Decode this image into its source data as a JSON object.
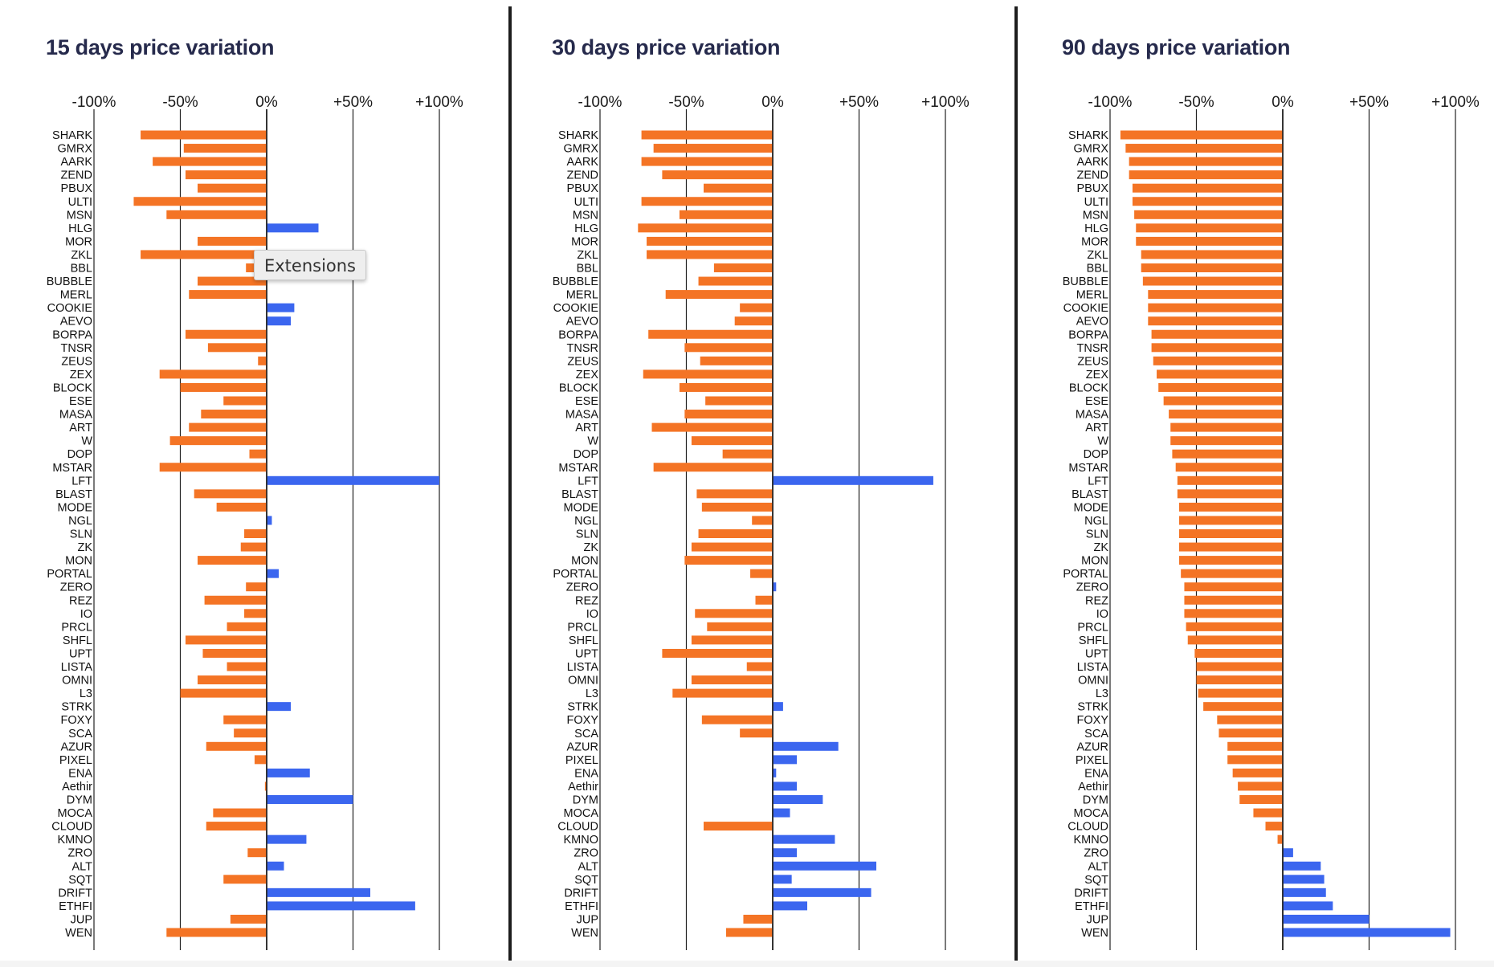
{
  "colors": {
    "negative": "#f47425",
    "positive": "#3b66ef",
    "title": "#262a4c"
  },
  "tooltip": {
    "text": "Extensions"
  },
  "chart_data": [
    {
      "type": "bar",
      "orientation": "horizontal",
      "title": "15 days price variation",
      "xlim": [
        -100,
        100
      ],
      "xticks": [
        -100,
        -50,
        0,
        50,
        100
      ],
      "xtick_labels": [
        "-100%",
        "-50%",
        "0%",
        "+50%",
        "+100%"
      ],
      "categories": [
        "SHARK",
        "GMRX",
        "AARK",
        "ZEND",
        "PBUX",
        "ULTI",
        "MSN",
        "HLG",
        "MOR",
        "ZKL",
        "BBL",
        "BUBBLE",
        "MERL",
        "COOKIE",
        "AEVO",
        "BORPA",
        "TNSR",
        "ZEUS",
        "ZEX",
        "BLOCK",
        "ESE",
        "MASA",
        "ART",
        "W",
        "DOP",
        "MSTAR",
        "LFT",
        "BLAST",
        "MODE",
        "NGL",
        "SLN",
        "ZK",
        "MON",
        "PORTAL",
        "ZERO",
        "REZ",
        "IO",
        "PRCL",
        "SHFL",
        "UPT",
        "LISTA",
        "OMNI",
        "L3",
        "STRK",
        "FOXY",
        "SCA",
        "AZUR",
        "PIXEL",
        "ENA",
        "Aethir",
        "DYM",
        "MOCA",
        "CLOUD",
        "KMNO",
        "ZRO",
        "ALT",
        "SQT",
        "DRIFT",
        "ETHFI",
        "JUP",
        "WEN"
      ],
      "values": [
        -73,
        -48,
        -66,
        -47,
        -40,
        -77,
        -58,
        30,
        -40,
        -73,
        -12,
        -40,
        -45,
        16,
        14,
        -47,
        -34,
        -5,
        -62,
        -50,
        -25,
        -38,
        -45,
        -56,
        -10,
        -62,
        100,
        -42,
        -29,
        3,
        -13,
        -15,
        -40,
        7,
        -12,
        -36,
        -13,
        -23,
        -47,
        -37,
        -23,
        -40,
        -50,
        14,
        -25,
        -19,
        -35,
        -7,
        25,
        -1,
        50,
        -31,
        -35,
        23,
        -11,
        10,
        -25,
        60,
        86,
        -21,
        -58
      ]
    },
    {
      "type": "bar",
      "orientation": "horizontal",
      "title": "30 days price variation",
      "xlim": [
        -100,
        100
      ],
      "xticks": [
        -100,
        -50,
        0,
        50,
        100
      ],
      "xtick_labels": [
        "-100%",
        "-50%",
        "0%",
        "+50%",
        "+100%"
      ],
      "categories": [
        "SHARK",
        "GMRX",
        "AARK",
        "ZEND",
        "PBUX",
        "ULTI",
        "MSN",
        "HLG",
        "MOR",
        "ZKL",
        "BBL",
        "BUBBLE",
        "MERL",
        "COOKIE",
        "AEVO",
        "BORPA",
        "TNSR",
        "ZEUS",
        "ZEX",
        "BLOCK",
        "ESE",
        "MASA",
        "ART",
        "W",
        "DOP",
        "MSTAR",
        "LFT",
        "BLAST",
        "MODE",
        "NGL",
        "SLN",
        "ZK",
        "MON",
        "PORTAL",
        "ZERO",
        "REZ",
        "IO",
        "PRCL",
        "SHFL",
        "UPT",
        "LISTA",
        "OMNI",
        "L3",
        "STRK",
        "FOXY",
        "SCA",
        "AZUR",
        "PIXEL",
        "ENA",
        "Aethir",
        "DYM",
        "MOCA",
        "CLOUD",
        "KMNO",
        "ZRO",
        "ALT",
        "SQT",
        "DRIFT",
        "ETHFI",
        "JUP",
        "WEN"
      ],
      "values": [
        -76,
        -69,
        -76,
        -64,
        -40,
        -76,
        -54,
        -78,
        -73,
        -73,
        -34,
        -43,
        -62,
        -19,
        -22,
        -72,
        -51,
        -42,
        -75,
        -54,
        -39,
        -51,
        -70,
        -47,
        -29,
        -69,
        93,
        -44,
        -41,
        -12,
        -43,
        -47,
        -51,
        -13,
        2,
        -10,
        -45,
        -38,
        -47,
        -64,
        -15,
        -47,
        -58,
        6,
        -41,
        -19,
        38,
        14,
        2,
        14,
        29,
        10,
        -40,
        36,
        14,
        60,
        11,
        57,
        20,
        -17,
        -27
      ]
    },
    {
      "type": "bar",
      "orientation": "horizontal",
      "title": "90 days price variation",
      "xlim": [
        -100,
        100
      ],
      "xticks": [
        -100,
        -50,
        0,
        50,
        100
      ],
      "xtick_labels": [
        "-100%",
        "-50%",
        "0%",
        "+50%",
        "+100%"
      ],
      "categories": [
        "SHARK",
        "GMRX",
        "AARK",
        "ZEND",
        "PBUX",
        "ULTI",
        "MSN",
        "HLG",
        "MOR",
        "ZKL",
        "BBL",
        "BUBBLE",
        "MERL",
        "COOKIE",
        "AEVO",
        "BORPA",
        "TNSR",
        "ZEUS",
        "ZEX",
        "BLOCK",
        "ESE",
        "MASA",
        "ART",
        "W",
        "DOP",
        "MSTAR",
        "LFT",
        "BLAST",
        "MODE",
        "NGL",
        "SLN",
        "ZK",
        "MON",
        "PORTAL",
        "ZERO",
        "REZ",
        "IO",
        "PRCL",
        "SHFL",
        "UPT",
        "LISTA",
        "OMNI",
        "L3",
        "STRK",
        "FOXY",
        "SCA",
        "AZUR",
        "PIXEL",
        "ENA",
        "Aethir",
        "DYM",
        "MOCA",
        "CLOUD",
        "KMNO",
        "ZRO",
        "ALT",
        "SQT",
        "DRIFT",
        "ETHFI",
        "JUP",
        "WEN"
      ],
      "values": [
        -94,
        -91,
        -89,
        -89,
        -87,
        -87,
        -86,
        -85,
        -85,
        -82,
        -82,
        -81,
        -78,
        -78,
        -78,
        -76,
        -76,
        -75,
        -73,
        -72,
        -69,
        -66,
        -65,
        -65,
        -64,
        -62,
        -61,
        -61,
        -60,
        -60,
        -60,
        -60,
        -60,
        -59,
        -57,
        -57,
        -57,
        -56,
        -55,
        -51,
        -50,
        -50,
        -49,
        -46,
        -38,
        -37,
        -32,
        -32,
        -29,
        -26,
        -25,
        -17,
        -10,
        -3,
        6,
        22,
        24,
        25,
        29,
        50,
        97
      ]
    }
  ]
}
